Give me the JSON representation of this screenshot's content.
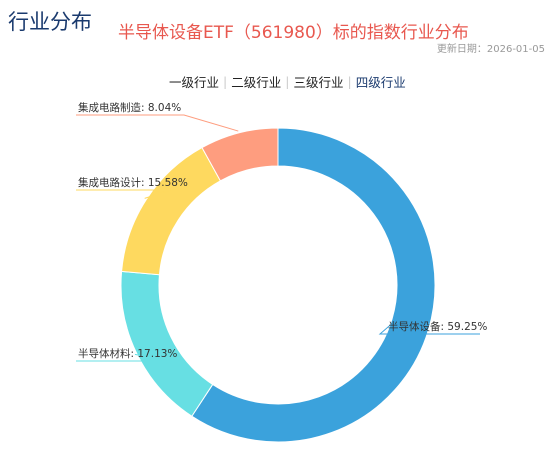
{
  "header": {
    "section_title": "行业分布",
    "chart_title": "半导体设备ETF（561980）标的指数行业分布",
    "update_date": "更新日期：2026-01-05"
  },
  "tabs": [
    {
      "label": "一级行业",
      "active": false
    },
    {
      "label": "二级行业",
      "active": false
    },
    {
      "label": "三级行业",
      "active": false
    },
    {
      "label": "四级行业",
      "active": true
    }
  ],
  "chart_data": {
    "type": "pie",
    "variant": "donut",
    "slices": [
      {
        "name": "半导体设备",
        "value": 59.25,
        "label": "半导体设备: 59.25%",
        "color": "#3ba2dc"
      },
      {
        "name": "半导体材料",
        "value": 17.13,
        "label": "半导体材料: 17.13%",
        "color": "#67dfe3"
      },
      {
        "name": "集成电路设计",
        "value": 15.58,
        "label": "集成电路设计: 15.58%",
        "color": "#fed95f"
      },
      {
        "name": "集成电路制造",
        "value": 8.04,
        "label": "集成电路制造: 8.04%",
        "color": "#fe9d7f"
      }
    ]
  }
}
